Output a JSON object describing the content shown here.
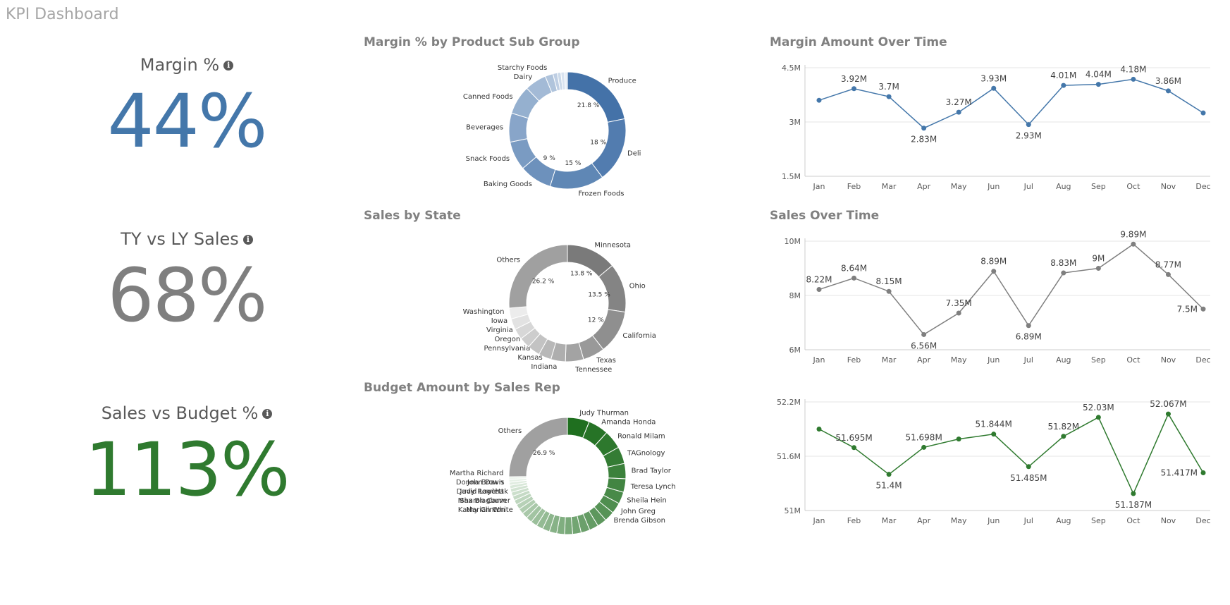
{
  "page": {
    "title": "KPI Dashboard"
  },
  "kpis": [
    {
      "label": "Margin %",
      "value": "44%",
      "color": "#4477aa",
      "info_icon": "info-icon"
    },
    {
      "label": "TY vs LY Sales",
      "value": "68%",
      "color": "#7f7f7f",
      "info_icon": "info-icon"
    },
    {
      "label": "Sales vs Budget %",
      "value": "113%",
      "color": "#2f7a2f",
      "info_icon": "info-icon"
    }
  ],
  "chart_data": [
    {
      "type": "pie",
      "style": "donut",
      "title": "Margin % by Product Sub Group",
      "color_scale": [
        "#4472a8",
        "#e6edf6"
      ],
      "labels": [
        "Produce",
        "Deli",
        "Frozen Foods",
        "Baking Goods",
        "Snack Foods",
        "Beverages",
        "Canned Foods",
        "Dairy",
        "Starchy Foods",
        "",
        "",
        "",
        ""
      ],
      "values": [
        21.8,
        18,
        15,
        9,
        8,
        8,
        8,
        6,
        2.2,
        1.2,
        1.0,
        1.0,
        0.8
      ],
      "data_labels": [
        "21.8 %",
        "18 %",
        "15 %",
        "9 %",
        "",
        "",
        "",
        "",
        "",
        "",
        "",
        "",
        ""
      ]
    },
    {
      "type": "pie",
      "style": "donut",
      "title": "Sales by State",
      "color_scale": [
        "#7a7a7a",
        "#ececec"
      ],
      "labels": [
        "Minnesota",
        "Ohio",
        "California",
        "Texas",
        "Tennessee",
        "Indiana",
        "Kansas",
        "Pennsylvania",
        "Oregon",
        "Virginia",
        "Iowa",
        "Washington",
        "Others"
      ],
      "values": [
        13.8,
        13.5,
        12,
        6,
        5,
        4,
        3.5,
        3.5,
        3,
        3,
        3,
        3,
        26.2
      ],
      "others_color": "#a0a0a0",
      "data_labels": [
        "13.8 %",
        "13.5 %",
        "12 %",
        "",
        "",
        "",
        "",
        "",
        "",
        "",
        "",
        "",
        "26.2 %"
      ]
    },
    {
      "type": "pie",
      "style": "donut",
      "title": "Budget Amount by Sales Rep",
      "color_scale": [
        "#1f6f1f",
        "#eef5ee"
      ],
      "labels": [
        "Judy Thurman",
        "Amanda Honda",
        "Ronald Milam",
        "TAGnology",
        "Brad Taylor",
        "Teresa Lynch",
        "Sheila Hein",
        "John Greg",
        "Brenda Gibson",
        "",
        "",
        "",
        "",
        "",
        "",
        "",
        "",
        "",
        "",
        "",
        "",
        "",
        "Marian White",
        "Sharon Carver",
        "David Laychak",
        "Max Blagburn",
        "Kathy Clinton",
        "John Davis",
        "Judy Rowlett",
        "Martha Richard",
        "Donna Brown",
        "Others"
      ],
      "values": [
        6.5,
        6.0,
        5.5,
        5.0,
        4.5,
        4.0,
        3.5,
        3.2,
        3.0,
        2.8,
        2.7,
        2.6,
        2.5,
        2.4,
        2.3,
        2.2,
        2.1,
        2.0,
        1.9,
        1.8,
        1.7,
        1.6,
        1.5,
        1.4,
        1.3,
        1.2,
        1.1,
        1.0,
        0.9,
        0.8,
        0.8,
        26.9
      ],
      "others_color": "#a0a0a0",
      "data_labels": [
        "",
        "",
        "",
        "",
        "",
        "",
        "",
        "",
        "",
        "",
        "",
        "",
        "",
        "",
        "",
        "",
        "",
        "",
        "",
        "",
        "",
        "",
        "",
        "",
        "",
        "",
        "",
        "",
        "",
        "",
        "",
        "26.9 %"
      ]
    },
    {
      "type": "line",
      "title": "Margin Amount Over Time",
      "color": "#4477aa",
      "categories": [
        "Jan",
        "Feb",
        "Mar",
        "Apr",
        "May",
        "Jun",
        "Jul",
        "Aug",
        "Sep",
        "Oct",
        "Nov",
        "Dec"
      ],
      "values": [
        3.6,
        3.92,
        3.7,
        2.83,
        3.27,
        3.93,
        2.93,
        4.01,
        4.04,
        4.18,
        3.86,
        3.25
      ],
      "data_labels": [
        "",
        "3.92M",
        "3.7M",
        "2.83M",
        "3.27M",
        "3.93M",
        "2.93M",
        "4.01M",
        "4.04M",
        "4.18M",
        "3.86M",
        ""
      ],
      "label_pos": [
        "",
        "above",
        "above",
        "below",
        "above",
        "above",
        "below",
        "above",
        "above",
        "above",
        "above",
        ""
      ],
      "yticks": [
        1.5,
        3,
        4.5
      ],
      "ytick_labels": [
        "1.5M",
        "3M",
        "4.5M"
      ],
      "ylim": [
        1.5,
        4.5
      ],
      "grid": true
    },
    {
      "type": "line",
      "title": "Sales Over Time",
      "color": "#7f7f7f",
      "categories": [
        "Jan",
        "Feb",
        "Mar",
        "Apr",
        "May",
        "Jun",
        "Jul",
        "Aug",
        "Sep",
        "Oct",
        "Nov",
        "Dec"
      ],
      "values": [
        8.22,
        8.64,
        8.15,
        6.56,
        7.35,
        8.89,
        6.89,
        8.83,
        9.0,
        9.89,
        8.77,
        7.5
      ],
      "data_labels": [
        "8.22M",
        "8.64M",
        "8.15M",
        "6.56M",
        "7.35M",
        "8.89M",
        "6.89M",
        "8.83M",
        "9M",
        "9.89M",
        "8.77M",
        "7.5M"
      ],
      "label_pos": [
        "above",
        "above",
        "above",
        "below",
        "above",
        "above",
        "below",
        "above",
        "above",
        "above",
        "above",
        "left"
      ],
      "yticks": [
        6,
        8,
        10
      ],
      "ytick_labels": [
        "6M",
        "8M",
        "10M"
      ],
      "ylim": [
        6,
        10
      ],
      "grid": true
    },
    {
      "type": "line",
      "title": "",
      "color": "#2f7a2f",
      "categories": [
        "Jan",
        "Feb",
        "Mar",
        "Apr",
        "May",
        "Jun",
        "Jul",
        "Aug",
        "Sep",
        "Oct",
        "Nov",
        "Dec"
      ],
      "values": [
        51.9,
        51.695,
        51.4,
        51.698,
        51.79,
        51.844,
        51.485,
        51.82,
        52.03,
        51.187,
        52.067,
        51.417
      ],
      "data_labels": [
        "",
        "51.695M",
        "51.4M",
        "51.698M",
        "",
        "51.844M",
        "51.485M",
        "51.82M",
        "52.03M",
        "51.187M",
        "52.067M",
        "51.417M"
      ],
      "label_pos": [
        "",
        "above",
        "below",
        "above",
        "",
        "above",
        "below",
        "above",
        "above",
        "below",
        "above",
        "left"
      ],
      "yticks": [
        51,
        51.6,
        52.2
      ],
      "ytick_labels": [
        "51M",
        "51.6M",
        "52.2M"
      ],
      "ylim": [
        51,
        52.2
      ],
      "grid": true
    }
  ]
}
